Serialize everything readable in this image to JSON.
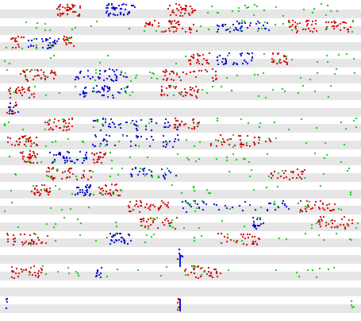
{
  "colors": {
    "background": "#ffffff",
    "band": "#e6e6e6",
    "red": "#cc0000",
    "green": "#00cc00",
    "blue": "#0000cc"
  },
  "rows": [
    {
      "clusters": [
        {
          "c": "red",
          "x0": 0.15,
          "x1": 0.22,
          "n": 40
        },
        {
          "c": "blue",
          "x0": 0.29,
          "x1": 0.38,
          "n": 40
        },
        {
          "c": "red",
          "x0": 0.46,
          "x1": 0.54,
          "n": 35
        },
        {
          "c": "green",
          "x0": 0.55,
          "x1": 0.95,
          "n": 25
        }
      ]
    },
    {
      "clusters": [
        {
          "c": "red",
          "x0": 0.4,
          "x1": 0.55,
          "n": 45
        },
        {
          "c": "blue",
          "x0": 0.6,
          "x1": 0.75,
          "n": 40
        },
        {
          "c": "red",
          "x0": 0.8,
          "x1": 0.88,
          "n": 30
        },
        {
          "c": "red",
          "x0": 0.9,
          "x1": 0.98,
          "n": 25
        },
        {
          "c": "green",
          "x0": 0.0,
          "x1": 1.0,
          "n": 30
        }
      ]
    },
    {
      "clusters": [
        {
          "c": "red",
          "x0": 0.02,
          "x1": 0.06,
          "n": 15
        },
        {
          "c": "blue",
          "x0": 0.07,
          "x1": 0.16,
          "n": 30
        },
        {
          "c": "red",
          "x0": 0.17,
          "x1": 0.2,
          "n": 15
        },
        {
          "c": "green",
          "x0": 0.0,
          "x1": 0.2,
          "n": 10
        }
      ]
    },
    {
      "clusters": [
        {
          "c": "red",
          "x0": 0.52,
          "x1": 0.58,
          "n": 25
        },
        {
          "c": "blue",
          "x0": 0.6,
          "x1": 0.7,
          "n": 30
        },
        {
          "c": "red",
          "x0": 0.75,
          "x1": 0.8,
          "n": 20
        },
        {
          "c": "green",
          "x0": 0.0,
          "x1": 1.0,
          "n": 20
        }
      ]
    },
    {
      "clusters": [
        {
          "c": "red",
          "x0": 0.05,
          "x1": 0.15,
          "n": 35
        },
        {
          "c": "blue",
          "x0": 0.2,
          "x1": 0.35,
          "n": 40
        },
        {
          "c": "red",
          "x0": 0.45,
          "x1": 0.6,
          "n": 35
        },
        {
          "c": "green",
          "x0": 0.0,
          "x1": 1.0,
          "n": 30
        }
      ]
    },
    {
      "clusters": [
        {
          "c": "red",
          "x0": 0.01,
          "x1": 0.09,
          "n": 30
        },
        {
          "c": "blue",
          "x0": 0.21,
          "x1": 0.35,
          "n": 40
        },
        {
          "c": "red",
          "x0": 0.44,
          "x1": 0.55,
          "n": 35
        },
        {
          "c": "green",
          "x0": 0.0,
          "x1": 1.0,
          "n": 30
        }
      ]
    },
    {
      "clusters": [
        {
          "c": "red",
          "x0": 0.01,
          "x1": 0.04,
          "n": 12
        },
        {
          "c": "blue",
          "x0": 0.015,
          "x1": 0.045,
          "n": 10
        }
      ]
    },
    {
      "clusters": [
        {
          "c": "red",
          "x0": 0.12,
          "x1": 0.2,
          "n": 30
        },
        {
          "c": "blue",
          "x0": 0.25,
          "x1": 0.5,
          "n": 45
        },
        {
          "c": "red",
          "x0": 0.48,
          "x1": 0.55,
          "n": 25
        },
        {
          "c": "green",
          "x0": 0.0,
          "x1": 1.0,
          "n": 35
        }
      ]
    },
    {
      "clusters": [
        {
          "c": "red",
          "x0": 0.01,
          "x1": 0.1,
          "n": 30
        },
        {
          "c": "blue",
          "x0": 0.25,
          "x1": 0.5,
          "n": 40
        },
        {
          "c": "red",
          "x0": 0.58,
          "x1": 0.75,
          "n": 35
        },
        {
          "c": "green",
          "x0": 0.0,
          "x1": 1.0,
          "n": 30
        }
      ]
    },
    {
      "clusters": [
        {
          "c": "red",
          "x0": 0.05,
          "x1": 0.1,
          "n": 25
        },
        {
          "c": "blue",
          "x0": 0.13,
          "x1": 0.24,
          "n": 35
        },
        {
          "c": "red",
          "x0": 0.25,
          "x1": 0.29,
          "n": 20
        },
        {
          "c": "green",
          "x0": 0.0,
          "x1": 1.0,
          "n": 30
        }
      ]
    },
    {
      "clusters": [
        {
          "c": "red",
          "x0": 0.12,
          "x1": 0.25,
          "n": 35
        },
        {
          "c": "blue",
          "x0": 0.35,
          "x1": 0.5,
          "n": 25
        },
        {
          "c": "red",
          "x0": 0.75,
          "x1": 0.85,
          "n": 25
        },
        {
          "c": "green",
          "x0": 0.0,
          "x1": 1.0,
          "n": 30
        }
      ]
    },
    {
      "clusters": [
        {
          "c": "red",
          "x0": 0.08,
          "x1": 0.14,
          "n": 25
        },
        {
          "c": "blue",
          "x0": 0.2,
          "x1": 0.25,
          "n": 25
        },
        {
          "c": "red",
          "x0": 0.27,
          "x1": 0.33,
          "n": 25
        },
        {
          "c": "green",
          "x0": 0.0,
          "x1": 1.0,
          "n": 25
        }
      ]
    },
    {
      "clusters": [
        {
          "c": "red",
          "x0": 0.35,
          "x1": 0.47,
          "n": 35
        },
        {
          "c": "blue",
          "x0": 0.5,
          "x1": 0.8,
          "n": 40
        },
        {
          "c": "red",
          "x0": 0.83,
          "x1": 0.93,
          "n": 30
        },
        {
          "c": "green",
          "x0": 0.0,
          "x1": 1.0,
          "n": 25
        }
      ]
    },
    {
      "clusters": [
        {
          "c": "red",
          "x0": 0.38,
          "x1": 0.49,
          "n": 30
        },
        {
          "c": "blue",
          "x0": 0.7,
          "x1": 0.73,
          "n": 15
        },
        {
          "c": "red",
          "x0": 0.88,
          "x1": 0.98,
          "n": 30
        },
        {
          "c": "green",
          "x0": 0.0,
          "x1": 1.0,
          "n": 30
        }
      ]
    },
    {
      "clusters": [
        {
          "c": "red",
          "x0": 0.01,
          "x1": 0.13,
          "n": 35
        },
        {
          "c": "blue",
          "x0": 0.3,
          "x1": 0.36,
          "n": 30
        },
        {
          "c": "red",
          "x0": 0.6,
          "x1": 0.72,
          "n": 30
        },
        {
          "c": "green",
          "x0": 0.0,
          "x1": 1.0,
          "n": 25
        }
      ]
    },
    {
      "clusters": [
        {
          "c": "blue",
          "x0": 0.49,
          "x1": 0.505,
          "n": 6
        }
      ]
    },
    {
      "clusters": [
        {
          "c": "red",
          "x0": 0.01,
          "x1": 0.11,
          "n": 30
        },
        {
          "c": "blue",
          "x0": 0.26,
          "x1": 0.28,
          "n": 10
        },
        {
          "c": "red",
          "x0": 0.51,
          "x1": 0.61,
          "n": 30
        },
        {
          "c": "green",
          "x0": 0.0,
          "x1": 1.0,
          "n": 30
        }
      ]
    },
    {
      "clusters": []
    },
    {
      "clusters": [
        {
          "c": "blue",
          "x0": 0.01,
          "x1": 0.015,
          "n": 4
        },
        {
          "c": "red",
          "x0": 0.49,
          "x1": 0.5,
          "n": 5
        },
        {
          "c": "green",
          "x0": 0.975,
          "x1": 0.985,
          "n": 4
        }
      ]
    }
  ]
}
